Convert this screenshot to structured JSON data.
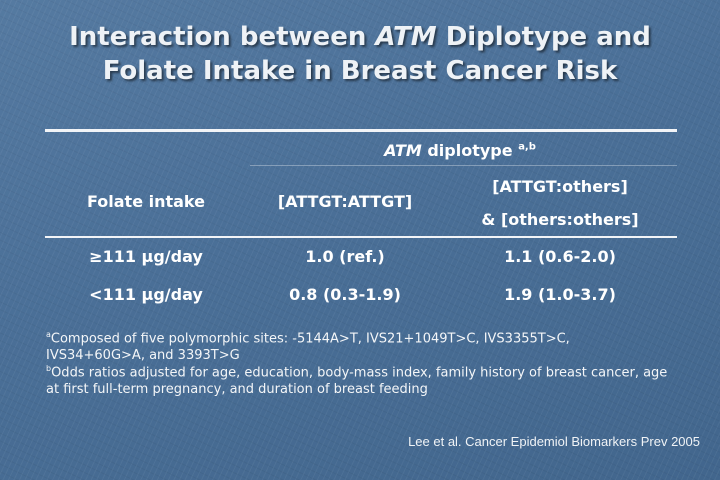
{
  "title": {
    "line1_pre": "Interaction between ",
    "line1_italic": "ATM",
    "line1_post": " Diplotype and",
    "line2": "Folate Intake in Breast Cancer Risk"
  },
  "table": {
    "group_header": {
      "italic": "ATM",
      "text": " diplotype",
      "sup": "a,b"
    },
    "columns": [
      "Folate intake",
      "[ATTGT:ATTGT]",
      "[ATTGT:others]",
      "& [others:others]"
    ],
    "rows": [
      [
        "≥111 μg/day",
        "1.0 (ref.)",
        "1.1 (0.6-2.0)"
      ],
      [
        "<111 μg/day",
        "0.8 (0.3-1.9)",
        "1.9 (1.0-3.7)"
      ]
    ]
  },
  "footnotes": {
    "a_mark": "a",
    "a_line1": "Composed of five polymorphic sites: -5144A>T, IVS21+1049T>C, IVS3355T>C,",
    "a_line2": "IVS34+60G>A, and 3393T>G",
    "b_mark": "b",
    "b_line1": "Odds ratios adjusted for age, education, body-mass index, family history of breast cancer, age",
    "b_line2": "at first full-term pregnancy, and duration of breast feeding"
  },
  "citation": "Lee et al. Cancer Epidemiol Biomarkers Prev 2005"
}
